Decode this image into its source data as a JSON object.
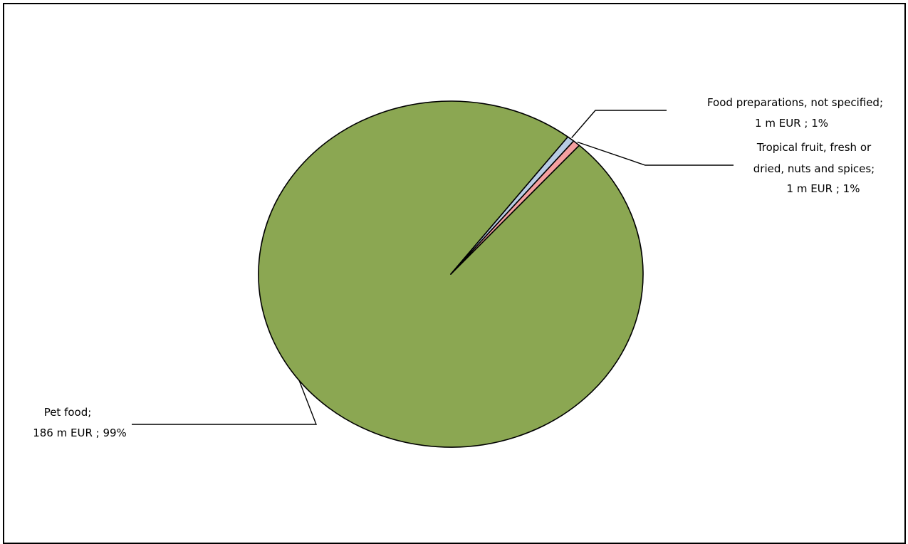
{
  "chart_data": {
    "type": "pie",
    "slices": [
      {
        "name": "Pet food",
        "value": 186,
        "unit": "m EUR",
        "percent": 99,
        "color": "#8ba752",
        "label_lines": [
          "Pet food;",
          "186 m EUR ; 99%"
        ]
      },
      {
        "name": "Food preparations, not specified",
        "value": 1,
        "unit": "m EUR",
        "percent": 1,
        "color": "#b8cce4",
        "label_lines": [
          "Food preparations, not specified;",
          "1 m EUR ; 1%"
        ]
      },
      {
        "name": "Tropical fruit, fresh or dried, nuts and spices",
        "value": 1,
        "unit": "m EUR",
        "percent": 1,
        "color": "#f4a0a0",
        "label_lines": [
          "Tropical fruit, fresh or",
          "dried, nuts and spices;",
          "1 m EUR ; 1%"
        ]
      }
    ]
  }
}
